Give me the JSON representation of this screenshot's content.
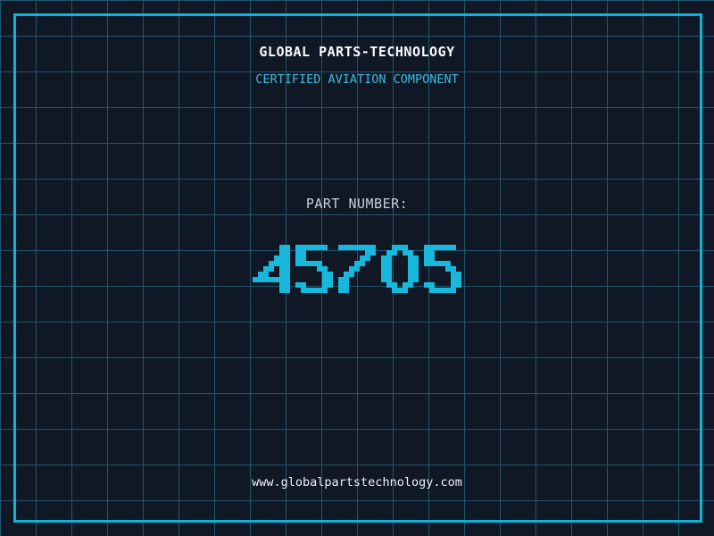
{
  "page": {
    "header": {
      "title": "GLOBAL PARTS-TECHNOLOGY",
      "subtitle": "CERTIFIED AVIATION COMPONENT"
    },
    "part_number": {
      "label": "PART NUMBER:",
      "value": "45705"
    },
    "footer": {
      "website": "www.globalpartstechnology.com"
    }
  },
  "colors": {
    "background": "#101826",
    "grid_line": "#20566e",
    "frame": "#0db4d8",
    "title_text": "#f8fafc",
    "subtitle_text": "#3fb9dc",
    "label_text": "#c9cfd8",
    "digit_color": "#18b7dc",
    "url_text": "#eef1f4"
  }
}
